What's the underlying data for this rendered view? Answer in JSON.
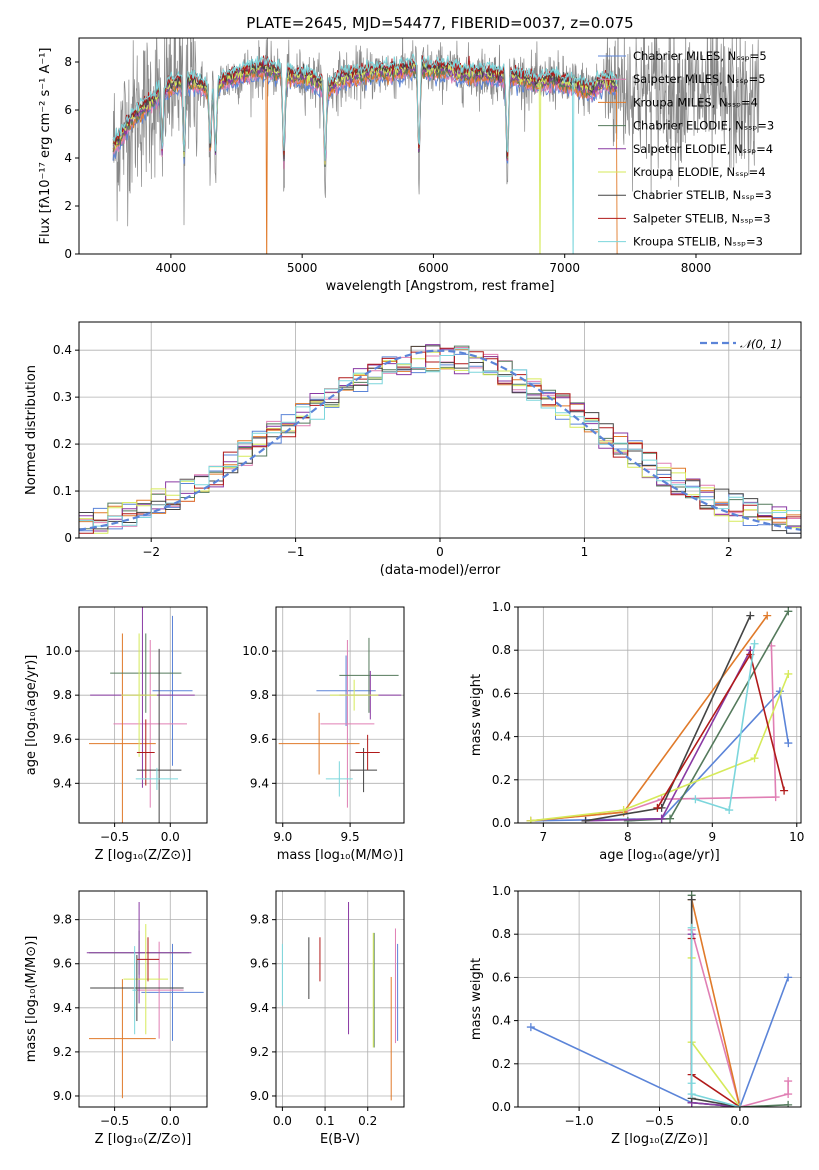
{
  "palette": {
    "Chabrier MILES": "#5b84d8",
    "Salpeter MILES": "#e07fb4",
    "Kroupa MILES": "#e07a2a",
    "Chabrier ELODIE": "#547a5c",
    "Salpeter ELODIE": "#8a3aa4",
    "Kroupa ELODIE": "#d6ea5a",
    "Chabrier STELIB": "#444444",
    "Salpeter STELIB": "#b01a1a",
    "Kroupa STELIB": "#7cd6dc",
    "data": "#888888",
    "normal": "#5b84d8"
  },
  "chart_data": [
    {
      "id": "spectrum",
      "type": "line",
      "title": "PLATE=2645, MJD=54477, FIBERID=0037, z=0.075",
      "xlabel": "wavelength [Angstrom, rest frame]",
      "ylabel": "Flux [fλ10⁻¹⁷ erg cm⁻² s⁻¹ A⁻¹]",
      "xlim": [
        3300,
        8800
      ],
      "ylim": [
        0,
        9
      ],
      "xticks": [
        4000,
        5000,
        6000,
        7000,
        8000
      ],
      "yticks": [
        0,
        2,
        4,
        6,
        8
      ],
      "legend": [
        "Chabrier MILES, Nₛₛₚ=5",
        "Salpeter MILES, Nₛₛₚ=5",
        "Kroupa MILES, Nₛₛₚ=4",
        "Chabrier ELODIE, Nₛₛₚ=3",
        "Salpeter ELODIE, Nₛₛₚ=4",
        "Kroupa ELODIE, Nₛₛₚ=4",
        "Chabrier STELIB, Nₛₛₚ=3",
        "Salpeter STELIB, Nₛₛₚ=3",
        "Kroupa STELIB, Nₛₛₚ=3"
      ],
      "legend_placement": "upper-right",
      "continuum": [
        [
          3560,
          4.4
        ],
        [
          3700,
          5.6
        ],
        [
          3800,
          6.1
        ],
        [
          3900,
          6.6
        ],
        [
          4000,
          7.0
        ],
        [
          4100,
          7.2
        ],
        [
          4200,
          7.1
        ],
        [
          4300,
          6.8
        ],
        [
          4400,
          7.2
        ],
        [
          4500,
          7.4
        ],
        [
          4600,
          7.6
        ],
        [
          4700,
          7.7
        ],
        [
          4800,
          7.6
        ],
        [
          4900,
          7.4
        ],
        [
          5000,
          7.4
        ],
        [
          5100,
          7.2
        ],
        [
          5200,
          6.9
        ],
        [
          5300,
          7.3
        ],
        [
          5400,
          7.4
        ],
        [
          5500,
          7.5
        ],
        [
          5600,
          7.6
        ],
        [
          5700,
          7.6
        ],
        [
          5800,
          7.7
        ],
        [
          5900,
          7.8
        ],
        [
          6000,
          7.6
        ],
        [
          6100,
          7.7
        ],
        [
          6200,
          7.5
        ],
        [
          6300,
          7.5
        ],
        [
          6400,
          7.5
        ],
        [
          6500,
          7.4
        ],
        [
          6600,
          7.4
        ],
        [
          6700,
          7.3
        ],
        [
          6800,
          7.1
        ],
        [
          6900,
          7.3
        ],
        [
          7000,
          7.1
        ],
        [
          7100,
          7.0
        ],
        [
          7200,
          6.8
        ],
        [
          7300,
          7.2
        ],
        [
          7400,
          7.0
        ]
      ],
      "data_continuum": [
        [
          7400,
          7.0
        ],
        [
          7600,
          6.8
        ],
        [
          7800,
          6.8
        ],
        [
          8000,
          6.6
        ],
        [
          8200,
          6.4
        ],
        [
          8400,
          6.2
        ],
        [
          8500,
          6.0
        ],
        [
          8800,
          5.6
        ]
      ],
      "absorptions": [
        [
          3933,
          2.3
        ],
        [
          4101,
          1.5
        ],
        [
          4300,
          2.6
        ],
        [
          4340,
          2.1
        ],
        [
          4861,
          1.0
        ],
        [
          5175,
          1.2
        ],
        [
          5890,
          1.4
        ],
        [
          6563,
          1.0
        ]
      ],
      "model_drops": [
        [
          4730,
          "Kroupa MILES"
        ],
        [
          6810,
          "Kroupa ELODIE"
        ],
        [
          7065,
          "Kroupa STELIB"
        ],
        [
          7400,
          "Kroupa MILES"
        ]
      ]
    },
    {
      "id": "residuals",
      "type": "line",
      "xlabel": "(data-model)/error",
      "ylabel": "Normed distribution",
      "xlim": [
        -2.5,
        2.5
      ],
      "ylim": [
        0,
        0.46
      ],
      "xticks": [
        -2,
        -1,
        0,
        1,
        2
      ],
      "yticks": [
        0.0,
        0.1,
        0.2,
        0.3,
        0.4
      ],
      "legend": [
        "𝒩(0, 1)"
      ],
      "legend_placement": "upper-right",
      "bin_width": 0.1
    },
    {
      "id": "age-vs-Z",
      "type": "scatter",
      "xlabel": "Z [log₁₀(Z/Z⊙)]",
      "ylabel": "age  [log₁₀(age/yr)]",
      "xlim": [
        -0.82,
        0.33
      ],
      "ylim": [
        9.22,
        10.2
      ],
      "xticks": [
        -0.5,
        0.0
      ],
      "yticks": [
        9.4,
        9.6,
        9.8,
        10.0
      ],
      "points": [
        {
          "model": "Chabrier MILES",
          "x": 0.02,
          "y": 9.82,
          "xerr": 0.18,
          "yerr": 0.34
        },
        {
          "model": "Salpeter MILES",
          "x": -0.18,
          "y": 9.67,
          "xerr": 0.33,
          "yerr": 0.38
        },
        {
          "model": "Kroupa MILES",
          "x": -0.43,
          "y": 9.58,
          "xerr": 0.3,
          "yerr": 0.5
        },
        {
          "model": "Chabrier ELODIE",
          "x": -0.22,
          "y": 9.9,
          "xerr": 0.32,
          "yerr": 0.18
        },
        {
          "model": "Salpeter ELODIE",
          "x": -0.25,
          "y": 9.8,
          "xerr": 0.47,
          "yerr": 0.42
        },
        {
          "model": "Kroupa ELODIE",
          "x": -0.28,
          "y": 9.8,
          "xerr": 0.16,
          "yerr": 0.28
        },
        {
          "model": "Chabrier STELIB",
          "x": -0.1,
          "y": 9.46,
          "xerr": 0.2,
          "yerr": 0.55
        },
        {
          "model": "Salpeter STELIB",
          "x": -0.22,
          "y": 9.54,
          "xerr": 0.08,
          "yerr": 0.15
        },
        {
          "model": "Kroupa STELIB",
          "x": -0.12,
          "y": 9.42,
          "xerr": 0.19,
          "yerr": 0.05
        }
      ]
    },
    {
      "id": "age-vs-mass",
      "type": "scatter",
      "xlabel": "mass [log₁₀(M/M⊙)]",
      "ylabel": "",
      "xlim": [
        8.95,
        9.9
      ],
      "ylim": [
        9.22,
        10.2
      ],
      "xticks": [
        9.0,
        9.5
      ],
      "yticks": [
        9.4,
        9.6,
        9.8,
        10.0
      ],
      "points": [
        {
          "model": "Chabrier MILES",
          "x": 9.47,
          "y": 9.82,
          "xerr": 0.22,
          "yerr": 0.16
        },
        {
          "model": "Salpeter MILES",
          "x": 9.48,
          "y": 9.67,
          "xerr": 0.2,
          "yerr": 0.38
        },
        {
          "model": "Kroupa MILES",
          "x": 9.27,
          "y": 9.58,
          "xerr": 0.3,
          "yerr": 0.14
        },
        {
          "model": "Chabrier ELODIE",
          "x": 9.64,
          "y": 9.89,
          "xerr": 0.22,
          "yerr": 0.17
        },
        {
          "model": "Salpeter ELODIE",
          "x": 9.65,
          "y": 9.8,
          "xerr": 0.23,
          "yerr": 0.11
        },
        {
          "model": "Kroupa ELODIE",
          "x": 9.53,
          "y": 9.8,
          "xerr": 0.18,
          "yerr": 0.07
        },
        {
          "model": "Chabrier STELIB",
          "x": 9.6,
          "y": 9.46,
          "xerr": 0.1,
          "yerr": 0.1
        },
        {
          "model": "Salpeter STELIB",
          "x": 9.63,
          "y": 9.54,
          "xerr": 0.09,
          "yerr": 0.08
        },
        {
          "model": "Kroupa STELIB",
          "x": 9.42,
          "y": 9.42,
          "xerr": 0.1,
          "yerr": 0.08
        }
      ]
    },
    {
      "id": "mass-weight-vs-age",
      "type": "line",
      "xlabel": "age  [log₁₀(age/yr)]",
      "ylabel": "mass weight",
      "xlim": [
        6.7,
        10.05
      ],
      "ylim": [
        0,
        1
      ],
      "xticks": [
        7,
        8,
        9,
        10
      ],
      "yticks": [
        0.0,
        0.2,
        0.4,
        0.6,
        0.8,
        1.0
      ],
      "series": [
        {
          "model": "Chabrier MILES",
          "x": [
            6.85,
            8.4,
            9.8,
            9.9
          ],
          "y": [
            0.01,
            0.02,
            0.61,
            0.37
          ]
        },
        {
          "model": "Salpeter MILES",
          "x": [
            6.85,
            7.95,
            8.4,
            9.75,
            9.7
          ],
          "y": [
            0.01,
            0.05,
            0.11,
            0.12,
            0.82
          ]
        },
        {
          "model": "Kroupa MILES",
          "x": [
            6.85,
            7.95,
            9.65
          ],
          "y": [
            0.01,
            0.05,
            0.96
          ]
        },
        {
          "model": "Chabrier ELODIE",
          "x": [
            8.0,
            8.5,
            9.9
          ],
          "y": [
            0.01,
            0.02,
            0.98
          ]
        },
        {
          "model": "Salpeter ELODIE",
          "x": [
            7.5,
            8.4,
            9.45
          ],
          "y": [
            0.01,
            0.02,
            0.8
          ]
        },
        {
          "model": "Kroupa ELODIE",
          "x": [
            6.85,
            7.95,
            9.5,
            9.9
          ],
          "y": [
            0.01,
            0.06,
            0.3,
            0.69
          ]
        },
        {
          "model": "Chabrier STELIB",
          "x": [
            7.5,
            8.4,
            9.45
          ],
          "y": [
            0.01,
            0.07,
            0.96
          ]
        },
        {
          "model": "Salpeter STELIB",
          "x": [
            8.35,
            9.45,
            9.85
          ],
          "y": [
            0.07,
            0.78,
            0.15
          ]
        },
        {
          "model": "Kroupa STELIB",
          "x": [
            8.8,
            9.2,
            9.5
          ],
          "y": [
            0.11,
            0.06,
            0.83
          ]
        }
      ]
    },
    {
      "id": "mass-vs-Z",
      "type": "scatter",
      "xlabel": "Z [log₁₀(Z/Z⊙)]",
      "ylabel": "mass [log₁₀(M/M⊙)]",
      "xlim": [
        -0.82,
        0.33
      ],
      "ylim": [
        8.95,
        9.93
      ],
      "xticks": [
        -0.5,
        0.0
      ],
      "yticks": [
        9.0,
        9.2,
        9.4,
        9.6,
        9.8
      ],
      "points": [
        {
          "model": "Chabrier MILES",
          "x": 0.02,
          "y": 9.47,
          "xerr": 0.28,
          "yerr": 0.22
        },
        {
          "model": "Salpeter MILES",
          "x": -0.1,
          "y": 9.48,
          "xerr": 0.22,
          "yerr": 0.22
        },
        {
          "model": "Kroupa MILES",
          "x": -0.43,
          "y": 9.26,
          "xerr": 0.3,
          "yerr": 0.27
        },
        {
          "model": "Chabrier ELODIE",
          "x": -0.28,
          "y": 9.65,
          "xerr": 0.45,
          "yerr": 0.1
        },
        {
          "model": "Salpeter ELODIE",
          "x": -0.28,
          "y": 9.65,
          "xerr": 0.47,
          "yerr": 0.23
        },
        {
          "model": "Kroupa ELODIE",
          "x": -0.22,
          "y": 9.53,
          "xerr": 0.2,
          "yerr": 0.25
        },
        {
          "model": "Chabrier STELIB",
          "x": -0.3,
          "y": 9.49,
          "xerr": 0.42,
          "yerr": 0.15
        },
        {
          "model": "Salpeter STELIB",
          "x": -0.2,
          "y": 9.62,
          "xerr": 0.1,
          "yerr": 0.1
        },
        {
          "model": "Kroupa STELIB",
          "x": -0.32,
          "y": 9.48,
          "xerr": 0.02,
          "yerr": 0.2
        }
      ]
    },
    {
      "id": "mass-vs-EBV",
      "type": "scatter",
      "xlabel": "E(B-V)",
      "ylabel": "",
      "xlim": [
        -0.015,
        0.285
      ],
      "ylim": [
        8.95,
        9.93
      ],
      "xticks": [
        0.0,
        0.1,
        0.2
      ],
      "yticks": [
        9.0,
        9.2,
        9.4,
        9.6,
        9.8
      ],
      "points": [
        {
          "model": "Chabrier MILES",
          "x": 0.27,
          "y": 9.47,
          "yerr": 0.22
        },
        {
          "model": "Salpeter MILES",
          "x": 0.265,
          "y": 9.5,
          "yerr": 0.26
        },
        {
          "model": "Kroupa MILES",
          "x": 0.255,
          "y": 9.26,
          "yerr": 0.28
        },
        {
          "model": "Chabrier ELODIE",
          "x": 0.215,
          "y": 9.48,
          "yerr": 0.26
        },
        {
          "model": "Salpeter ELODIE",
          "x": 0.155,
          "y": 9.58,
          "yerr": 0.3
        },
        {
          "model": "Kroupa ELODIE",
          "x": 0.213,
          "y": 9.48,
          "yerr": 0.26
        },
        {
          "model": "Chabrier STELIB",
          "x": 0.062,
          "y": 9.58,
          "yerr": 0.14
        },
        {
          "model": "Salpeter STELIB",
          "x": 0.088,
          "y": 9.62,
          "yerr": 0.1
        },
        {
          "model": "Kroupa STELIB",
          "x": 0.0,
          "y": 9.55,
          "yerr": 0.14
        }
      ]
    },
    {
      "id": "mass-weight-vs-Z",
      "type": "line",
      "xlabel": "Z [log₁₀(Z/Z⊙)]",
      "ylabel": "mass weight",
      "xlim": [
        -1.38,
        0.38
      ],
      "ylim": [
        0,
        1
      ],
      "xticks": [
        -1.0,
        -0.5,
        0.0
      ],
      "yticks": [
        0.0,
        0.2,
        0.4,
        0.6,
        0.8,
        1.0
      ],
      "series": [
        {
          "model": "Chabrier MILES",
          "x": [
            -1.3,
            -0.3,
            0.0,
            0.3
          ],
          "y": [
            0.37,
            0.02,
            0.0,
            0.6
          ]
        },
        {
          "model": "Salpeter MILES",
          "x": [
            -0.3,
            0.0,
            0.3,
            0.3
          ],
          "y": [
            0.82,
            0.0,
            0.06,
            0.12
          ]
        },
        {
          "model": "Kroupa MILES",
          "x": [
            -0.3,
            0.0
          ],
          "y": [
            0.96,
            0.0
          ]
        },
        {
          "model": "Chabrier ELODIE",
          "x": [
            -0.3,
            -0.3,
            0.0,
            0.3
          ],
          "y": [
            0.98,
            0.02,
            0.0,
            0.01
          ]
        },
        {
          "model": "Salpeter ELODIE",
          "x": [
            -0.3,
            -0.3,
            0.0
          ],
          "y": [
            0.8,
            0.02,
            0.0
          ]
        },
        {
          "model": "Kroupa ELODIE",
          "x": [
            -0.3,
            -0.3,
            0.0
          ],
          "y": [
            0.69,
            0.3,
            0.0
          ]
        },
        {
          "model": "Chabrier STELIB",
          "x": [
            -0.3,
            -0.3,
            0.0
          ],
          "y": [
            0.96,
            0.04,
            0.0
          ]
        },
        {
          "model": "Salpeter STELIB",
          "x": [
            -0.3,
            -0.3,
            0.0
          ],
          "y": [
            0.78,
            0.15,
            0.0
          ]
        },
        {
          "model": "Kroupa STELIB",
          "x": [
            -0.3,
            -0.3,
            -0.3,
            0.0
          ],
          "y": [
            0.83,
            0.11,
            0.06,
            0.0
          ]
        }
      ]
    }
  ]
}
